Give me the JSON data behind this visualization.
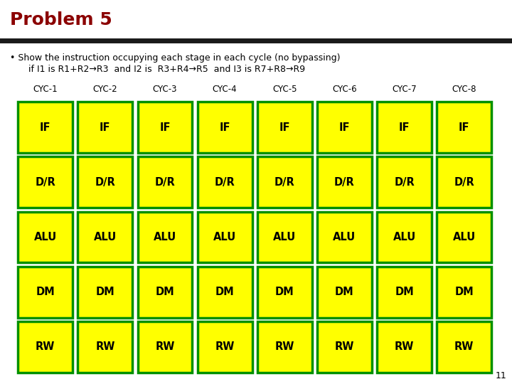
{
  "title": "Problem 5",
  "title_color": "#8B0000",
  "bullet_text_line1": "Show the instruction occupying each stage in each cycle (no bypassing)",
  "bullet_text_line2": "if I1 is R1+R2→R3  and I2 is  R3+R4→R5  and I3 is R7+R8→R9",
  "cycle_labels": [
    "CYC-1",
    "CYC-2",
    "CYC-3",
    "CYC-4",
    "CYC-5",
    "CYC-6",
    "CYC-7",
    "CYC-8"
  ],
  "stage_labels": [
    "IF",
    "D/R",
    "ALU",
    "DM",
    "RW"
  ],
  "cell_fill": "#FFFF00",
  "cell_border": "#009000",
  "cell_text_color": "#000000",
  "page_number": "11",
  "background_color": "#FFFFFF",
  "header_line_color": "#1a1a1a",
  "bullet_color": "#cc0000"
}
